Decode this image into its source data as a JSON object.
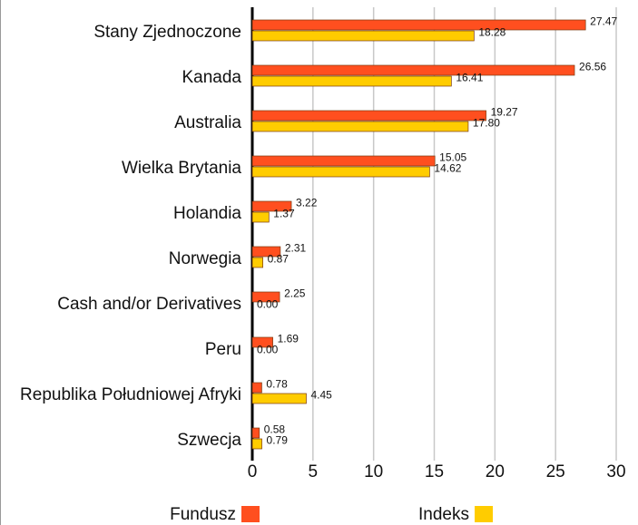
{
  "chart_data": {
    "type": "bar",
    "orientation": "horizontal",
    "categories": [
      "Stany Zjednoczone",
      "Kanada",
      "Australia",
      "Wielka Brytania",
      "Holandia",
      "Norwegia",
      "Cash and/or Derivatives",
      "Peru",
      "Republika Południowej Afryki",
      "Szwecja"
    ],
    "series": [
      {
        "name": "Fundusz",
        "color": "#ff4f1f",
        "values": [
          27.47,
          26.56,
          19.27,
          15.05,
          3.22,
          2.31,
          2.25,
          1.69,
          0.78,
          0.58
        ],
        "value_labels": [
          "27.47",
          "26.56",
          "19.27",
          "15.05",
          "3.22",
          "2.31",
          "2.25",
          "1.69",
          "0.78",
          "0.58"
        ]
      },
      {
        "name": "Indeks",
        "color": "#ffcc00",
        "values": [
          18.28,
          16.41,
          17.8,
          14.62,
          1.37,
          0.87,
          0,
          0,
          4.45,
          0.79
        ],
        "value_labels": [
          "18.28",
          "16.41",
          "17.80",
          "14.62",
          "1.37",
          "0.87",
          "0.00",
          "0.00",
          "4.45",
          "0.79"
        ]
      }
    ],
    "xlim": [
      0,
      30
    ],
    "xticks": [
      0,
      5,
      10,
      15,
      20,
      25,
      30
    ],
    "grid": true
  }
}
